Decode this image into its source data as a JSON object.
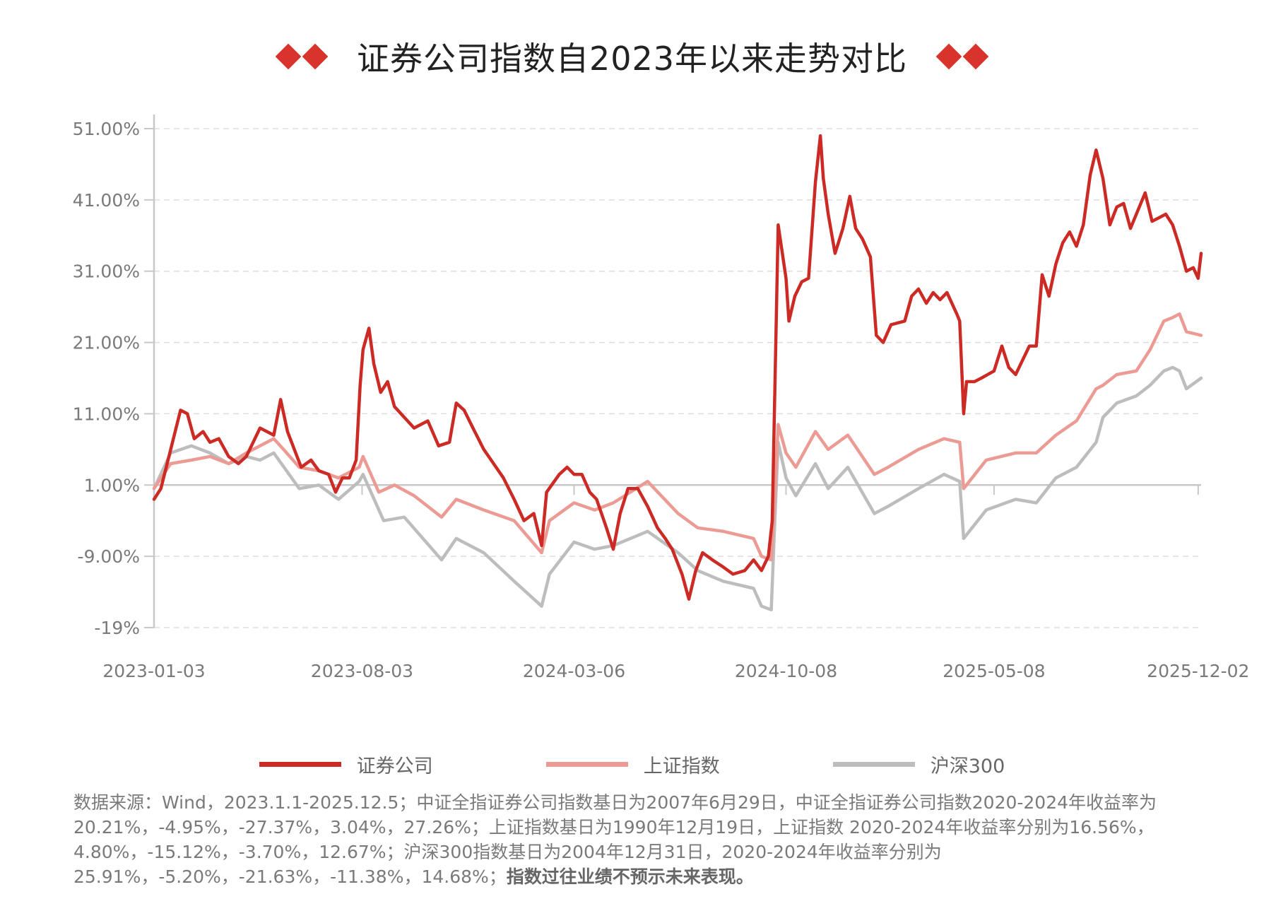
{
  "title": "证券公司指数自2023年以来走势对比",
  "colors": {
    "brokers": "#cc2a24",
    "sse": "#ec9a94",
    "csi300": "#bdbdbd",
    "accent": "#d9342b"
  },
  "legend": [
    {
      "name": "证券公司",
      "icon": "legend-line-red"
    },
    {
      "name": "上证指数",
      "icon": "legend-line-pink"
    },
    {
      "name": "沪深300",
      "icon": "legend-line-gray"
    }
  ],
  "footnote": {
    "text": "数据来源：Wind，2023.1.1-2025.12.5；中证全指证券公司指数基日为2007年6月29日，中证全指证券公司指数2020-2024年收益率为20.21%，-4.95%，-27.37%，3.04%，27.26%；上证指数基日为1990年12月19日，上证指数  2020-2024年收益率分别为16.56%，4.80%，-15.12%，-3.70%，12.67%；沪深300指数基日为2004年12月31日，2020-2024年收益率分别为25.91%，-5.20%，-21.63%，-11.38%，14.68%；",
    "bold": "指数过往业绩不预示未来表现。"
  },
  "chart_data": {
    "type": "line",
    "y_tick_labels": [
      "-19%",
      "-9.00%",
      "1.00%",
      "11.00%",
      "21.00%",
      "31.00%",
      "41.00%",
      "51.00%"
    ],
    "y_tick_values": [
      -19,
      -9,
      1,
      11,
      21,
      31,
      41,
      51
    ],
    "ylim": [
      -19,
      51
    ],
    "x_tick_labels": [
      "2023-01-03",
      "2023-08-03",
      "2024-03-06",
      "2024-10-08",
      "2025-05-08",
      "2025-12-02"
    ],
    "x_tick_values": [
      "2023-01-03",
      "2023-08-03",
      "2024-03-06",
      "2024-10-08",
      "2025-05-08",
      "2025-12-02"
    ],
    "xlim": [
      "2023-01-03",
      "2025-12-05"
    ],
    "grid": "horizontal dashed",
    "legend_position": "bottom",
    "series": [
      {
        "name": "证券公司",
        "color": "#cc2a24",
        "points": [
          [
            "2023-01-03",
            -1.0
          ],
          [
            "2023-01-10",
            0.5
          ],
          [
            "2023-01-20",
            6.0
          ],
          [
            "2023-01-30",
            11.5
          ],
          [
            "2023-02-06",
            11.0
          ],
          [
            "2023-02-13",
            7.5
          ],
          [
            "2023-02-22",
            8.5
          ],
          [
            "2023-03-01",
            7.0
          ],
          [
            "2023-03-10",
            7.5
          ],
          [
            "2023-03-20",
            5.0
          ],
          [
            "2023-03-30",
            4.0
          ],
          [
            "2023-04-07",
            5.0
          ],
          [
            "2023-04-14",
            7.0
          ],
          [
            "2023-04-21",
            9.0
          ],
          [
            "2023-04-28",
            8.5
          ],
          [
            "2023-05-05",
            8.0
          ],
          [
            "2023-05-12",
            13.0
          ],
          [
            "2023-05-19",
            8.5
          ],
          [
            "2023-05-26",
            6.0
          ],
          [
            "2023-06-02",
            3.5
          ],
          [
            "2023-06-12",
            4.5
          ],
          [
            "2023-06-20",
            3.0
          ],
          [
            "2023-06-30",
            2.5
          ],
          [
            "2023-07-07",
            0.0
          ],
          [
            "2023-07-14",
            2.0
          ],
          [
            "2023-07-21",
            2.0
          ],
          [
            "2023-07-28",
            4.5
          ],
          [
            "2023-08-01",
            15.0
          ],
          [
            "2023-08-04",
            20.0
          ],
          [
            "2023-08-10",
            23.0
          ],
          [
            "2023-08-15",
            18.0
          ],
          [
            "2023-08-22",
            14.0
          ],
          [
            "2023-08-29",
            15.5
          ],
          [
            "2023-09-05",
            12.0
          ],
          [
            "2023-09-15",
            10.5
          ],
          [
            "2023-09-25",
            9.0
          ],
          [
            "2023-10-09",
            10.0
          ],
          [
            "2023-10-20",
            6.5
          ],
          [
            "2023-10-31",
            7.0
          ],
          [
            "2023-11-07",
            12.5
          ],
          [
            "2023-11-15",
            11.5
          ],
          [
            "2023-11-24",
            9.0
          ],
          [
            "2023-12-05",
            6.0
          ],
          [
            "2023-12-15",
            4.0
          ],
          [
            "2023-12-25",
            2.0
          ],
          [
            "2024-01-05",
            -1.0
          ],
          [
            "2024-01-15",
            -4.0
          ],
          [
            "2024-01-25",
            -3.0
          ],
          [
            "2024-02-02",
            -7.5
          ],
          [
            "2024-02-07",
            0.0
          ],
          [
            "2024-02-20",
            2.5
          ],
          [
            "2024-02-28",
            3.5
          ],
          [
            "2024-03-06",
            2.5
          ],
          [
            "2024-03-14",
            2.5
          ],
          [
            "2024-03-22",
            0.0
          ],
          [
            "2024-03-29",
            -1.0
          ],
          [
            "2024-04-08",
            -5.0
          ],
          [
            "2024-04-15",
            -8.0
          ],
          [
            "2024-04-22",
            -3.0
          ],
          [
            "2024-04-30",
            0.5
          ],
          [
            "2024-05-10",
            0.5
          ],
          [
            "2024-05-20",
            -2.0
          ],
          [
            "2024-05-30",
            -5.0
          ],
          [
            "2024-06-07",
            -6.5
          ],
          [
            "2024-06-14",
            -8.0
          ],
          [
            "2024-06-24",
            -11.5
          ],
          [
            "2024-07-01",
            -15.0
          ],
          [
            "2024-07-08",
            -11.0
          ],
          [
            "2024-07-15",
            -8.5
          ],
          [
            "2024-07-25",
            -9.5
          ],
          [
            "2024-08-05",
            -10.5
          ],
          [
            "2024-08-15",
            -11.5
          ],
          [
            "2024-08-27",
            -11.0
          ],
          [
            "2024-09-05",
            -9.5
          ],
          [
            "2024-09-13",
            -11.0
          ],
          [
            "2024-09-20",
            -9.0
          ],
          [
            "2024-09-24",
            -4.0
          ],
          [
            "2024-09-26",
            10.0
          ],
          [
            "2024-09-30",
            37.5
          ],
          [
            "2024-10-08",
            30.0
          ],
          [
            "2024-10-11",
            24.0
          ],
          [
            "2024-10-17",
            27.5
          ],
          [
            "2024-10-24",
            29.5
          ],
          [
            "2024-10-31",
            30.0
          ],
          [
            "2024-11-07",
            43.5
          ],
          [
            "2024-11-12",
            50.0
          ],
          [
            "2024-11-15",
            44.0
          ],
          [
            "2024-11-20",
            39.0
          ],
          [
            "2024-11-27",
            33.5
          ],
          [
            "2024-12-05",
            37.0
          ],
          [
            "2024-12-12",
            41.5
          ],
          [
            "2024-12-18",
            37.0
          ],
          [
            "2024-12-25",
            35.5
          ],
          [
            "2025-01-02",
            33.0
          ],
          [
            "2025-01-08",
            22.0
          ],
          [
            "2025-01-15",
            21.0
          ],
          [
            "2025-01-23",
            23.5
          ],
          [
            "2025-02-06",
            24.0
          ],
          [
            "2025-02-13",
            27.5
          ],
          [
            "2025-02-20",
            28.5
          ],
          [
            "2025-02-28",
            26.5
          ],
          [
            "2025-03-07",
            28.0
          ],
          [
            "2025-03-14",
            27.0
          ],
          [
            "2025-03-21",
            28.0
          ],
          [
            "2025-03-31",
            25.0
          ],
          [
            "2025-04-03",
            24.0
          ],
          [
            "2025-04-07",
            11.0
          ],
          [
            "2025-04-10",
            15.5
          ],
          [
            "2025-04-18",
            15.5
          ],
          [
            "2025-04-25",
            16.0
          ],
          [
            "2025-05-08",
            17.0
          ],
          [
            "2025-05-16",
            20.5
          ],
          [
            "2025-05-23",
            17.5
          ],
          [
            "2025-05-30",
            16.5
          ],
          [
            "2025-06-06",
            18.5
          ],
          [
            "2025-06-13",
            20.5
          ],
          [
            "2025-06-20",
            20.5
          ],
          [
            "2025-06-26",
            30.5
          ],
          [
            "2025-07-03",
            27.5
          ],
          [
            "2025-07-10",
            32.0
          ],
          [
            "2025-07-17",
            35.0
          ],
          [
            "2025-07-24",
            36.5
          ],
          [
            "2025-07-31",
            34.5
          ],
          [
            "2025-08-07",
            37.5
          ],
          [
            "2025-08-14",
            44.5
          ],
          [
            "2025-08-20",
            48.0
          ],
          [
            "2025-08-27",
            44.0
          ],
          [
            "2025-09-03",
            37.5
          ],
          [
            "2025-09-10",
            40.0
          ],
          [
            "2025-09-17",
            40.5
          ],
          [
            "2025-09-24",
            37.0
          ],
          [
            "2025-10-09",
            42.0
          ],
          [
            "2025-10-16",
            38.0
          ],
          [
            "2025-10-23",
            38.5
          ],
          [
            "2025-10-30",
            39.0
          ],
          [
            "2025-11-06",
            37.5
          ],
          [
            "2025-11-13",
            34.5
          ],
          [
            "2025-11-20",
            31.0
          ],
          [
            "2025-11-27",
            31.5
          ],
          [
            "2025-12-02",
            30.0
          ],
          [
            "2025-12-05",
            33.5
          ]
        ]
      },
      {
        "name": "上证指数",
        "color": "#ec9a94",
        "points": [
          [
            "2023-01-03",
            0.5
          ],
          [
            "2023-01-20",
            4.0
          ],
          [
            "2023-02-10",
            4.5
          ],
          [
            "2023-03-01",
            5.0
          ],
          [
            "2023-03-20",
            4.0
          ],
          [
            "2023-04-07",
            5.5
          ],
          [
            "2023-05-05",
            7.5
          ],
          [
            "2023-05-15",
            6.0
          ],
          [
            "2023-05-31",
            3.5
          ],
          [
            "2023-06-20",
            3.0
          ],
          [
            "2023-07-10",
            2.0
          ],
          [
            "2023-07-31",
            3.5
          ],
          [
            "2023-08-04",
            5.0
          ],
          [
            "2023-08-20",
            0.0
          ],
          [
            "2023-09-05",
            1.0
          ],
          [
            "2023-09-25",
            -0.5
          ],
          [
            "2023-10-23",
            -3.5
          ],
          [
            "2023-11-07",
            -1.0
          ],
          [
            "2023-12-05",
            -2.5
          ],
          [
            "2024-01-05",
            -4.0
          ],
          [
            "2024-02-02",
            -8.5
          ],
          [
            "2024-02-10",
            -4.0
          ],
          [
            "2024-03-06",
            -1.5
          ],
          [
            "2024-03-27",
            -2.5
          ],
          [
            "2024-04-15",
            -1.5
          ],
          [
            "2024-05-20",
            1.5
          ],
          [
            "2024-06-20",
            -3.0
          ],
          [
            "2024-07-10",
            -5.0
          ],
          [
            "2024-08-05",
            -5.5
          ],
          [
            "2024-09-05",
            -6.5
          ],
          [
            "2024-09-13",
            -9.0
          ],
          [
            "2024-09-23",
            -9.5
          ],
          [
            "2024-09-26",
            -2.0
          ],
          [
            "2024-09-30",
            9.5
          ],
          [
            "2024-10-08",
            5.5
          ],
          [
            "2024-10-18",
            3.5
          ],
          [
            "2024-11-07",
            8.5
          ],
          [
            "2024-11-20",
            6.0
          ],
          [
            "2024-12-10",
            8.0
          ],
          [
            "2025-01-06",
            2.5
          ],
          [
            "2025-01-20",
            3.5
          ],
          [
            "2025-02-20",
            6.0
          ],
          [
            "2025-03-18",
            7.5
          ],
          [
            "2025-04-03",
            7.0
          ],
          [
            "2025-04-07",
            0.5
          ],
          [
            "2025-04-30",
            4.5
          ],
          [
            "2025-05-30",
            5.5
          ],
          [
            "2025-06-20",
            5.5
          ],
          [
            "2025-07-10",
            8.0
          ],
          [
            "2025-07-31",
            10.0
          ],
          [
            "2025-08-20",
            14.5
          ],
          [
            "2025-08-27",
            15.0
          ],
          [
            "2025-09-10",
            16.5
          ],
          [
            "2025-09-30",
            17.0
          ],
          [
            "2025-10-14",
            20.0
          ],
          [
            "2025-10-28",
            24.0
          ],
          [
            "2025-11-06",
            24.5
          ],
          [
            "2025-11-13",
            25.0
          ],
          [
            "2025-11-20",
            22.5
          ],
          [
            "2025-12-05",
            22.0
          ]
        ]
      },
      {
        "name": "沪深300",
        "color": "#bdbdbd",
        "points": [
          [
            "2023-01-03",
            0.5
          ],
          [
            "2023-01-20",
            5.5
          ],
          [
            "2023-02-10",
            6.5
          ],
          [
            "2023-03-01",
            5.5
          ],
          [
            "2023-03-20",
            4.0
          ],
          [
            "2023-04-07",
            5.0
          ],
          [
            "2023-04-21",
            4.5
          ],
          [
            "2023-05-05",
            5.5
          ],
          [
            "2023-05-31",
            0.5
          ],
          [
            "2023-06-20",
            1.0
          ],
          [
            "2023-07-10",
            -1.0
          ],
          [
            "2023-07-31",
            1.5
          ],
          [
            "2023-08-04",
            2.5
          ],
          [
            "2023-08-25",
            -4.0
          ],
          [
            "2023-09-15",
            -3.5
          ],
          [
            "2023-10-23",
            -9.5
          ],
          [
            "2023-11-07",
            -6.5
          ],
          [
            "2023-12-05",
            -8.5
          ],
          [
            "2024-01-05",
            -12.5
          ],
          [
            "2024-02-02",
            -16.0
          ],
          [
            "2024-02-10",
            -11.5
          ],
          [
            "2024-03-06",
            -7.0
          ],
          [
            "2024-03-27",
            -8.0
          ],
          [
            "2024-04-15",
            -7.5
          ],
          [
            "2024-05-20",
            -5.5
          ],
          [
            "2024-06-20",
            -8.5
          ],
          [
            "2024-07-10",
            -11.0
          ],
          [
            "2024-08-05",
            -12.5
          ],
          [
            "2024-09-05",
            -13.5
          ],
          [
            "2024-09-13",
            -16.0
          ],
          [
            "2024-09-23",
            -16.5
          ],
          [
            "2024-09-26",
            -6.0
          ],
          [
            "2024-09-30",
            7.0
          ],
          [
            "2024-10-08",
            2.0
          ],
          [
            "2024-10-18",
            -0.5
          ],
          [
            "2024-11-07",
            4.0
          ],
          [
            "2024-11-20",
            0.5
          ],
          [
            "2024-12-10",
            3.5
          ],
          [
            "2025-01-06",
            -3.0
          ],
          [
            "2025-01-20",
            -2.0
          ],
          [
            "2025-02-20",
            0.5
          ],
          [
            "2025-03-18",
            2.5
          ],
          [
            "2025-04-03",
            1.5
          ],
          [
            "2025-04-07",
            -6.5
          ],
          [
            "2025-04-30",
            -2.5
          ],
          [
            "2025-05-30",
            -1.0
          ],
          [
            "2025-06-20",
            -1.5
          ],
          [
            "2025-07-10",
            2.0
          ],
          [
            "2025-07-31",
            3.5
          ],
          [
            "2025-08-20",
            7.0
          ],
          [
            "2025-08-27",
            10.5
          ],
          [
            "2025-09-10",
            12.5
          ],
          [
            "2025-09-30",
            13.5
          ],
          [
            "2025-10-14",
            15.0
          ],
          [
            "2025-10-28",
            17.0
          ],
          [
            "2025-11-06",
            17.5
          ],
          [
            "2025-11-13",
            17.0
          ],
          [
            "2025-11-20",
            14.5
          ],
          [
            "2025-12-05",
            16.0
          ]
        ]
      }
    ]
  }
}
